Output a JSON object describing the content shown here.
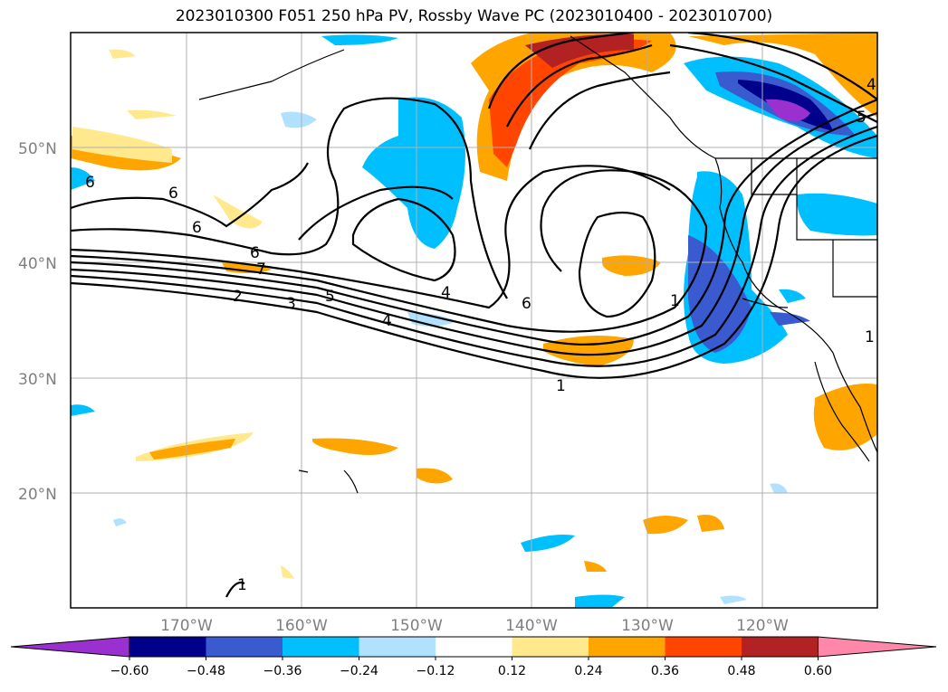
{
  "title": "2023010300 F051 250 hPa PV, Rossby Wave PC (2023010400 - 2023010700)",
  "lat_labels": [
    "50°N",
    "40°N",
    "30°N",
    "20°N"
  ],
  "lon_labels": [
    "170°W",
    "160°W",
    "150°W",
    "140°W",
    "130°W",
    "120°W"
  ],
  "colorbar": {
    "ticks": [
      "−0.60",
      "−0.48",
      "−0.36",
      "−0.24",
      "−0.12",
      "0.12",
      "0.24",
      "0.36",
      "0.48",
      "0.60"
    ],
    "colors": [
      "#9a30d0",
      "#00008b",
      "#3a5bd0",
      "#00bfff",
      "#b0e2ff",
      "#ffffff",
      "#ffe98c",
      "#ffa500",
      "#ff4500",
      "#b22222",
      "#ff88aa"
    ]
  },
  "contour_labels": [
    "6",
    "6",
    "6",
    "6",
    "7",
    "2",
    "3",
    "5",
    "4",
    "4",
    "6",
    "1",
    "1",
    "1",
    "1",
    "4",
    "5"
  ],
  "colors": {
    "positive_mid": "#ffa500",
    "positive_high": "#ff4500",
    "negative_mid": "#00bfff",
    "negative_high": "#3a5bd0"
  }
}
